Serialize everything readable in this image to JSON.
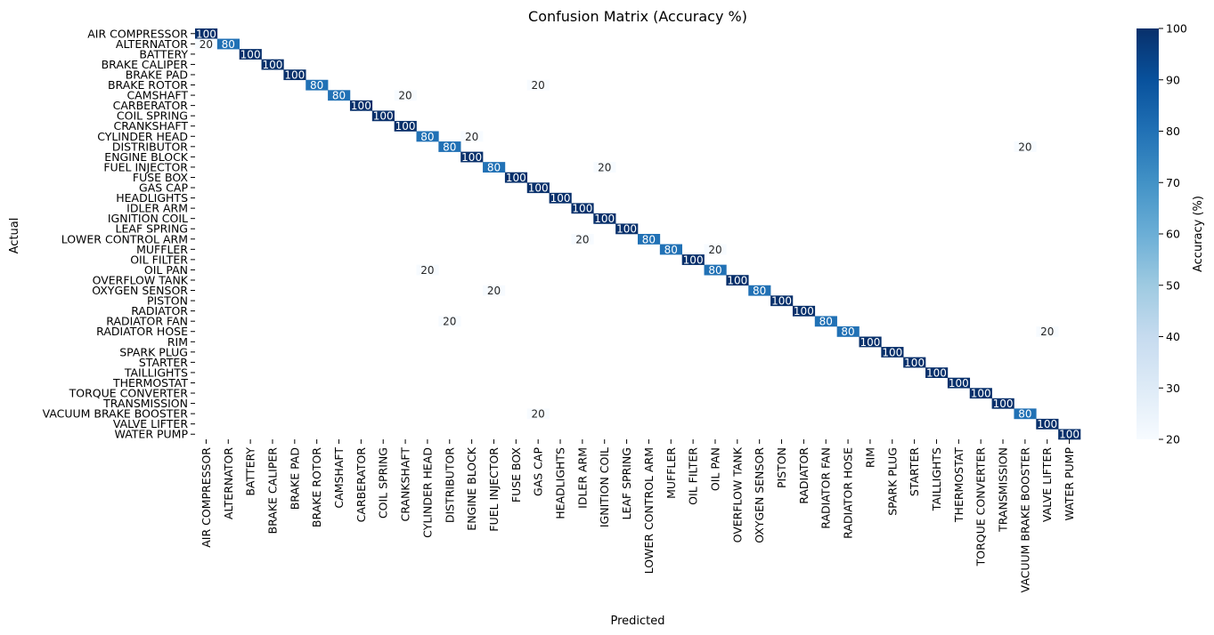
{
  "chart_data": {
    "type": "heatmap",
    "title": "Confusion Matrix (Accuracy %)",
    "xlabel": "Predicted",
    "ylabel": "Actual",
    "colorbar_label": "Accuracy (%)",
    "colorbar_range": [
      20,
      100
    ],
    "colorbar_ticks": [
      20,
      30,
      40,
      50,
      60,
      70,
      80,
      90,
      100
    ],
    "colormap": "Blues",
    "categories": [
      "AIR COMPRESSOR",
      "ALTERNATOR",
      "BATTERY",
      "BRAKE CALIPER",
      "BRAKE PAD",
      "BRAKE ROTOR",
      "CAMSHAFT",
      "CARBERATOR",
      "COIL SPRING",
      "CRANKSHAFT",
      "CYLINDER HEAD",
      "DISTRIBUTOR",
      "ENGINE BLOCK",
      "FUEL INJECTOR",
      "FUSE BOX",
      "GAS CAP",
      "HEADLIGHTS",
      "IDLER ARM",
      "IGNITION COIL",
      "LEAF SPRING",
      "LOWER CONTROL ARM",
      "MUFFLER",
      "OIL FILTER",
      "OIL PAN",
      "OVERFLOW TANK",
      "OXYGEN SENSOR",
      "PISTON",
      "RADIATOR",
      "RADIATOR FAN",
      "RADIATOR HOSE",
      "RIM",
      "SPARK PLUG",
      "STARTER",
      "TAILLIGHTS",
      "THERMOSTAT",
      "TORQUE CONVERTER",
      "TRANSMISSION",
      "VACUUM BRAKE BOOSTER",
      "VALVE LIFTER",
      "WATER PUMP"
    ],
    "cells": [
      {
        "row": 0,
        "col": 0,
        "value": 100
      },
      {
        "row": 1,
        "col": 0,
        "value": 20
      },
      {
        "row": 1,
        "col": 1,
        "value": 80
      },
      {
        "row": 2,
        "col": 2,
        "value": 100
      },
      {
        "row": 3,
        "col": 3,
        "value": 100
      },
      {
        "row": 4,
        "col": 4,
        "value": 100
      },
      {
        "row": 5,
        "col": 5,
        "value": 80
      },
      {
        "row": 5,
        "col": 15,
        "value": 20
      },
      {
        "row": 6,
        "col": 6,
        "value": 80
      },
      {
        "row": 6,
        "col": 9,
        "value": 20
      },
      {
        "row": 7,
        "col": 7,
        "value": 100
      },
      {
        "row": 8,
        "col": 8,
        "value": 100
      },
      {
        "row": 9,
        "col": 9,
        "value": 100
      },
      {
        "row": 10,
        "col": 10,
        "value": 80
      },
      {
        "row": 10,
        "col": 12,
        "value": 20
      },
      {
        "row": 11,
        "col": 11,
        "value": 80
      },
      {
        "row": 11,
        "col": 37,
        "value": 20
      },
      {
        "row": 12,
        "col": 12,
        "value": 100
      },
      {
        "row": 13,
        "col": 13,
        "value": 80
      },
      {
        "row": 13,
        "col": 18,
        "value": 20
      },
      {
        "row": 14,
        "col": 14,
        "value": 100
      },
      {
        "row": 15,
        "col": 15,
        "value": 100
      },
      {
        "row": 16,
        "col": 16,
        "value": 100
      },
      {
        "row": 17,
        "col": 17,
        "value": 100
      },
      {
        "row": 18,
        "col": 18,
        "value": 100
      },
      {
        "row": 19,
        "col": 19,
        "value": 100
      },
      {
        "row": 20,
        "col": 20,
        "value": 80
      },
      {
        "row": 20,
        "col": 17,
        "value": 20
      },
      {
        "row": 21,
        "col": 21,
        "value": 80
      },
      {
        "row": 21,
        "col": 23,
        "value": 20
      },
      {
        "row": 22,
        "col": 22,
        "value": 100
      },
      {
        "row": 23,
        "col": 23,
        "value": 80
      },
      {
        "row": 23,
        "col": 10,
        "value": 20
      },
      {
        "row": 24,
        "col": 24,
        "value": 100
      },
      {
        "row": 25,
        "col": 25,
        "value": 80
      },
      {
        "row": 25,
        "col": 13,
        "value": 20
      },
      {
        "row": 26,
        "col": 26,
        "value": 100
      },
      {
        "row": 27,
        "col": 27,
        "value": 100
      },
      {
        "row": 28,
        "col": 28,
        "value": 80
      },
      {
        "row": 28,
        "col": 11,
        "value": 20
      },
      {
        "row": 29,
        "col": 29,
        "value": 80
      },
      {
        "row": 29,
        "col": 38,
        "value": 20
      },
      {
        "row": 30,
        "col": 30,
        "value": 100
      },
      {
        "row": 31,
        "col": 31,
        "value": 100
      },
      {
        "row": 32,
        "col": 32,
        "value": 100
      },
      {
        "row": 33,
        "col": 33,
        "value": 100
      },
      {
        "row": 34,
        "col": 34,
        "value": 100
      },
      {
        "row": 35,
        "col": 35,
        "value": 100
      },
      {
        "row": 36,
        "col": 36,
        "value": 100
      },
      {
        "row": 37,
        "col": 37,
        "value": 80
      },
      {
        "row": 37,
        "col": 15,
        "value": 20
      },
      {
        "row": 38,
        "col": 38,
        "value": 100
      },
      {
        "row": 39,
        "col": 39,
        "value": 100
      }
    ]
  }
}
